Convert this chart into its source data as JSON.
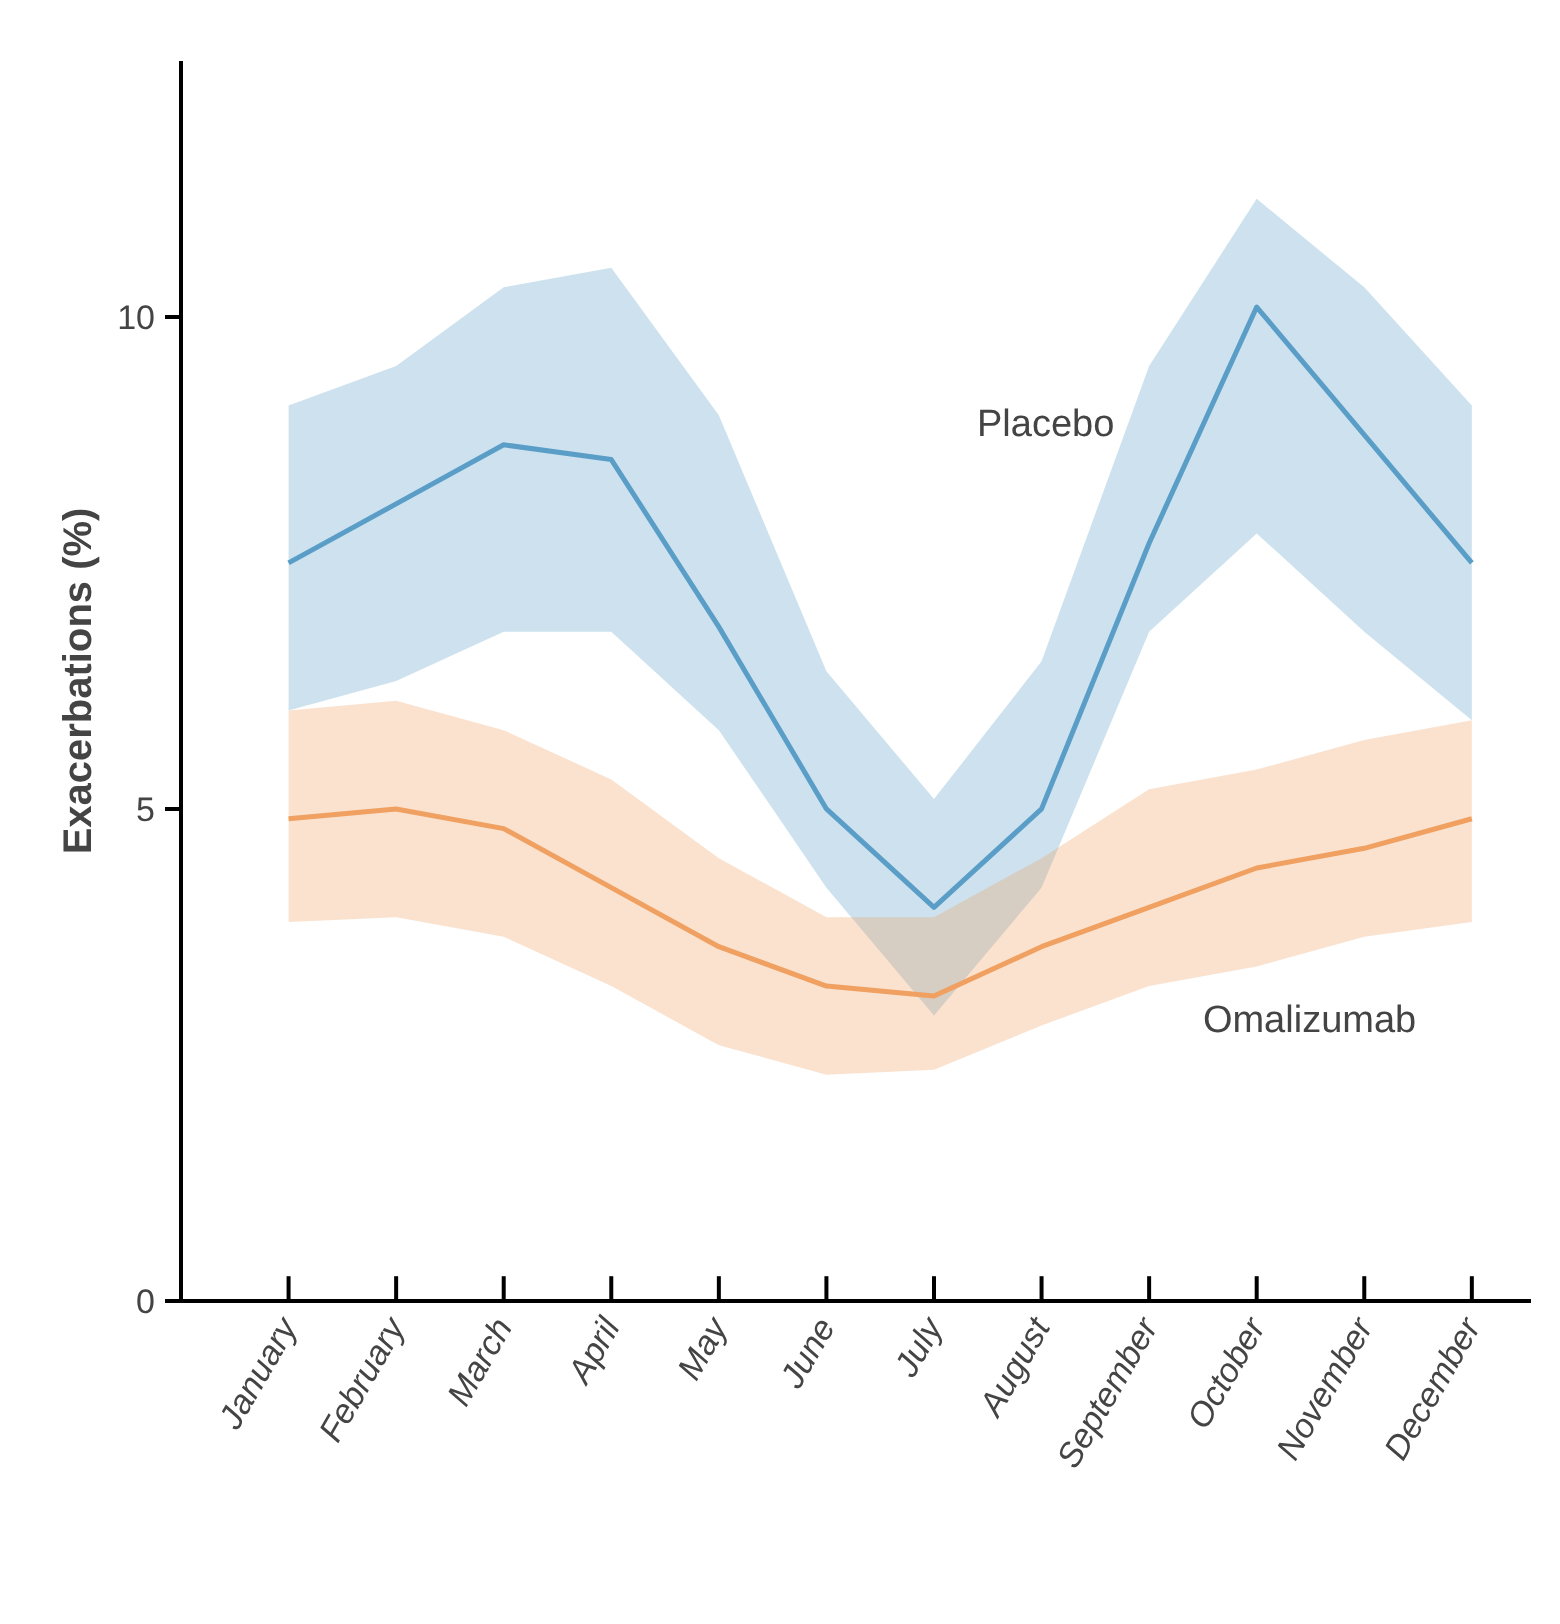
{
  "chart_data": {
    "type": "line",
    "ylabel": "Exacerbations (%)",
    "categories": [
      "January",
      "February",
      "March",
      "April",
      "May",
      "June",
      "July",
      "August",
      "September",
      "October",
      "November",
      "December"
    ],
    "series": [
      {
        "name": "Placebo",
        "color": "#5a9ec8",
        "values": [
          7.5,
          8.1,
          8.7,
          8.55,
          6.85,
          5.0,
          4.0,
          5.0,
          7.7,
          10.1,
          8.8,
          7.5
        ],
        "upper": [
          9.1,
          9.5,
          10.3,
          10.5,
          9.0,
          6.4,
          5.1,
          6.5,
          9.5,
          11.2,
          10.3,
          9.1
        ],
        "lower": [
          6.0,
          6.3,
          6.8,
          6.8,
          5.8,
          4.2,
          2.9,
          4.2,
          6.8,
          7.8,
          6.8,
          5.9
        ]
      },
      {
        "name": "Omalizumab",
        "color": "#f0a060",
        "values": [
          4.9,
          5.0,
          4.8,
          4.2,
          3.6,
          3.2,
          3.1,
          3.6,
          4.0,
          4.4,
          4.6,
          4.9
        ],
        "upper": [
          6.0,
          6.1,
          5.8,
          5.3,
          4.5,
          3.9,
          3.9,
          4.5,
          5.2,
          5.4,
          5.7,
          5.9
        ],
        "lower": [
          3.85,
          3.9,
          3.7,
          3.2,
          2.6,
          2.3,
          2.35,
          2.8,
          3.2,
          3.4,
          3.7,
          3.85
        ]
      }
    ],
    "ylim": [
      0,
      12.6
    ],
    "yticks": [
      0,
      5,
      10
    ],
    "grid": false
  }
}
